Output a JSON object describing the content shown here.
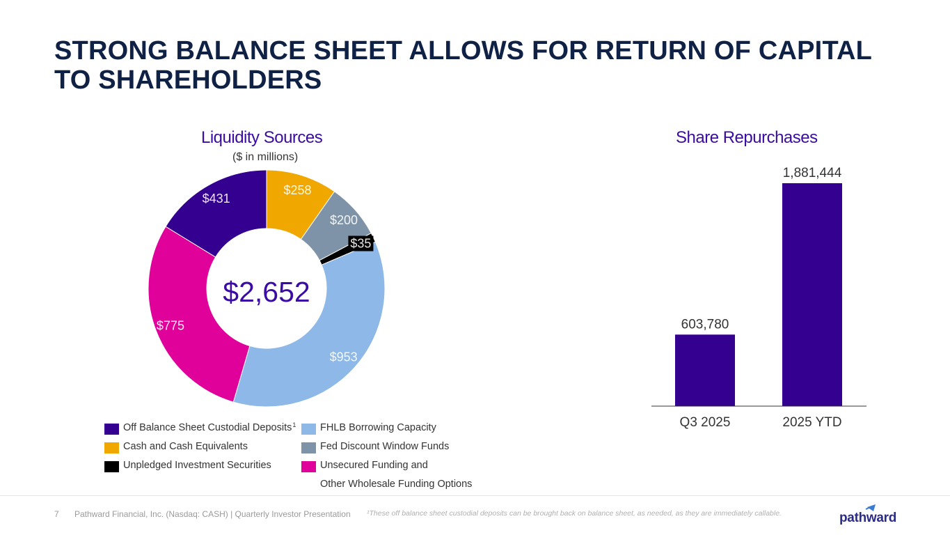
{
  "title": {
    "line1": "STRONG BALANCE SHEET ALLOWS FOR RETURN OF CAPITAL",
    "line2": "TO SHAREHOLDERS"
  },
  "colors": {
    "title": "#0f2145",
    "accent": "#3a0ca3",
    "off_balance": "#33008f",
    "fhlb": "#8db8e8",
    "cash": "#f0a800",
    "fed": "#7f93a8",
    "unpledged": "#000000",
    "unsecured": "#e0009a"
  },
  "chart_data": [
    {
      "type": "pie",
      "title": "Liquidity Sources",
      "subtitle": "($ in millions)",
      "center_label": "$2,652",
      "slices": [
        {
          "name": "Cash and Cash Equivalents",
          "value": 258,
          "label": "$258",
          "color": "#f0a800"
        },
        {
          "name": "Fed Discount Window Funds",
          "value": 200,
          "label": "$200",
          "color": "#7f93a8"
        },
        {
          "name": "Unpledged Investment Securities",
          "value": 35,
          "label": "$35",
          "color": "#000000"
        },
        {
          "name": "FHLB Borrowing Capacity",
          "value": 953,
          "label": "$953",
          "color": "#8db8e8"
        },
        {
          "name": "Unsecured Funding and Other Wholesale Funding Options",
          "value": 775,
          "label": "$775",
          "color": "#e0009a"
        },
        {
          "name": "Off Balance Sheet Custodial Deposits",
          "value": 431,
          "label": "$431",
          "color": "#33008f"
        }
      ],
      "legend": [
        {
          "label": "Off Balance Sheet Custodial Deposits",
          "sup": "1",
          "color": "#33008f"
        },
        {
          "label": "FHLB Borrowing Capacity",
          "color": "#8db8e8"
        },
        {
          "label": "Cash and Cash Equivalents",
          "color": "#f0a800"
        },
        {
          "label": "Fed Discount Window Funds",
          "color": "#7f93a8"
        },
        {
          "label": "Unpledged Investment Securities",
          "color": "#000000"
        },
        {
          "label": "Unsecured Funding and",
          "label2": "Other Wholesale Funding Options",
          "color": "#e0009a"
        }
      ]
    },
    {
      "type": "bar",
      "title": "Share Repurchases",
      "categories": [
        "Q3 2025",
        "2025 YTD"
      ],
      "values": [
        603780,
        1881444
      ],
      "value_labels": [
        "603,780",
        "1,881,444"
      ],
      "ylim": [
        0,
        1881444
      ],
      "color": "#33008f"
    }
  ],
  "footer": {
    "page_number": "7",
    "company": "Pathward Financial, Inc. (Nasdaq: CASH) | Quarterly Investor Presentation",
    "footnote": "¹These off balance sheet custodial deposits can be brought back on balance sheet, as needed, as they are immediately callable.",
    "logo_text": "pathward"
  }
}
